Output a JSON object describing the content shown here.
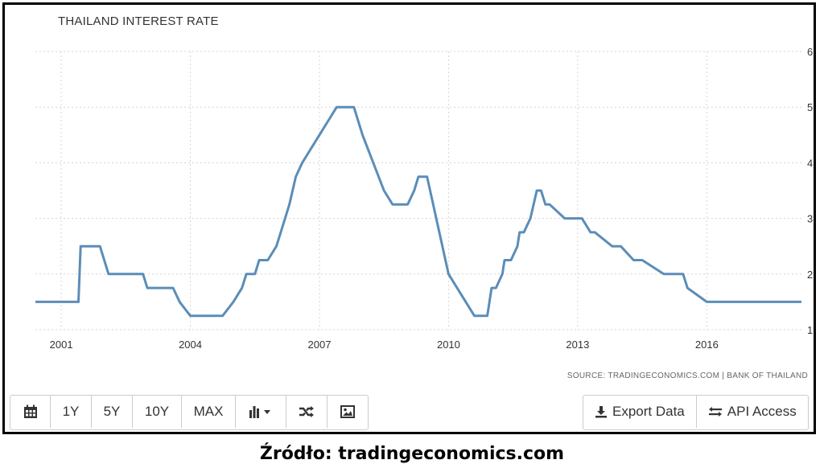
{
  "chart_data": {
    "type": "line",
    "title": "THAILAND INTEREST RATE",
    "x_tick_labels": [
      "2001",
      "2004",
      "2007",
      "2010",
      "2013",
      "2016"
    ],
    "x_tick_values": [
      2001,
      2004,
      2007,
      2010,
      2013,
      2016
    ],
    "y_tick_labels": [
      "1",
      "2",
      "3",
      "4",
      "5",
      "6"
    ],
    "ylim": [
      1,
      6
    ],
    "xlim": [
      2000.4,
      2018.2
    ],
    "grid": true,
    "y_axis_side": "right",
    "series": [
      {
        "color": "#5b8db8",
        "x": [
          2000.4,
          2001.4,
          2001.45,
          2001.9,
          2002.1,
          2002.5,
          2002.9,
          2003.0,
          2003.5,
          2003.6,
          2003.75,
          2004.0,
          2004.3,
          2004.6,
          2004.75,
          2005.0,
          2005.2,
          2005.3,
          2005.5,
          2005.6,
          2005.8,
          2006.0,
          2006.1,
          2006.3,
          2006.45,
          2006.6,
          2006.8,
          2007.0,
          2007.2,
          2007.4,
          2007.55,
          2007.8,
          2008.0,
          2008.5,
          2008.7,
          2008.85,
          2008.95,
          2009.05,
          2009.2,
          2009.3,
          2009.5,
          2010.0,
          2010.4,
          2010.6,
          2010.8,
          2010.9,
          2011.0,
          2011.1,
          2011.25,
          2011.3,
          2011.45,
          2011.6,
          2011.65,
          2011.75,
          2011.9,
          2012.05,
          2012.15,
          2012.25,
          2012.35,
          2012.7,
          2012.9,
          2013.1,
          2013.3,
          2013.4,
          2013.8,
          2014.0,
          2014.3,
          2014.5,
          2015.0,
          2015.3,
          2015.45,
          2015.55,
          2016.0,
          2018.2
        ],
        "y": [
          1.5,
          1.5,
          2.5,
          2.5,
          2.0,
          2.0,
          2.0,
          1.75,
          1.75,
          1.75,
          1.5,
          1.25,
          1.25,
          1.25,
          1.25,
          1.5,
          1.75,
          2.0,
          2.0,
          2.25,
          2.25,
          2.5,
          2.75,
          3.25,
          3.75,
          4.0,
          4.25,
          4.5,
          4.75,
          5.0,
          5.0,
          5.0,
          4.5,
          3.5,
          3.25,
          3.25,
          3.25,
          3.25,
          3.5,
          3.75,
          3.75,
          2.0,
          1.5,
          1.25,
          1.25,
          1.25,
          1.75,
          1.75,
          2.0,
          2.25,
          2.25,
          2.5,
          2.75,
          2.75,
          3.0,
          3.5,
          3.5,
          3.25,
          3.25,
          3.0,
          3.0,
          3.0,
          2.75,
          2.75,
          2.5,
          2.5,
          2.25,
          2.25,
          2.0,
          2.0,
          2.0,
          1.75,
          1.5,
          1.5
        ]
      }
    ]
  },
  "source_text": "SOURCE: TRADINGECONOMICS.COM | BANK OF THAILAND",
  "toolbar": {
    "range_1y": "1Y",
    "range_5y": "5Y",
    "range_10y": "10Y",
    "range_max": "MAX",
    "export_label": "Export Data",
    "api_label": "API Access"
  },
  "icons": {
    "calendar": "calendar-icon",
    "chart_type": "bar-chart-icon",
    "shuffle": "shuffle-icon",
    "image": "image-icon",
    "download": "download-icon",
    "exchange": "exchange-icon"
  },
  "caption": "Źródło: tradingeconomics.com"
}
